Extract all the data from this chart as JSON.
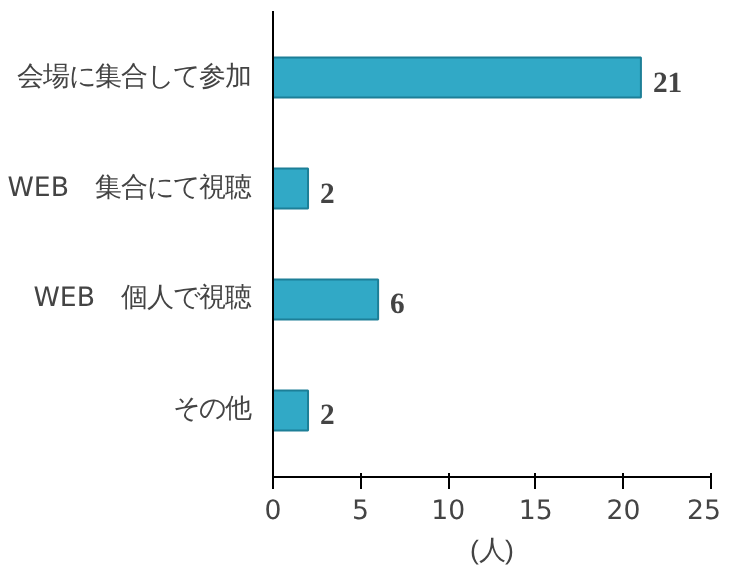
{
  "chart_data": {
    "type": "bar",
    "orientation": "horizontal",
    "categories": [
      "会場に集合して参加",
      "WEB　集合にて視聴",
      "WEB　個人で視聴",
      "その他"
    ],
    "values": [
      21,
      2,
      6,
      2
    ],
    "color": "#31a9c6",
    "xlim": [
      0,
      25
    ],
    "xticks": [
      0,
      5,
      10,
      15,
      20,
      25
    ],
    "xlabel": "(人)",
    "data_labels": true
  }
}
